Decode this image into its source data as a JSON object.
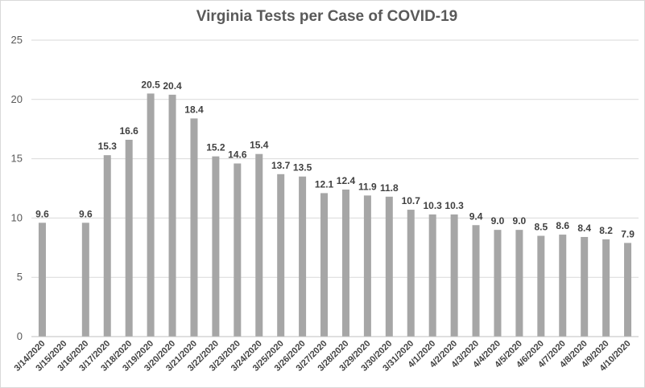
{
  "chart_data": {
    "type": "bar",
    "title": "Virginia Tests per Case of COVID-19",
    "xlabel": "",
    "ylabel": "",
    "ylim": [
      0,
      25
    ],
    "yticks": [
      0,
      5,
      10,
      15,
      20,
      25
    ],
    "grid": true,
    "legend": "none",
    "bar_color": "#a6a6a6",
    "categories": [
      "3/14/2020",
      "3/15/2020",
      "3/16/2020",
      "3/17/2020",
      "3/18/2020",
      "3/19/2020",
      "3/20/2020",
      "3/21/2020",
      "3/22/2020",
      "3/23/2020",
      "3/24/2020",
      "3/25/2020",
      "3/26/2020",
      "3/27/2020",
      "3/28/2020",
      "3/29/2020",
      "3/30/2020",
      "3/31/2020",
      "4/1/2020",
      "4/2/2020",
      "4/3/2020",
      "4/4/2020",
      "4/5/2020",
      "4/6/2020",
      "4/7/2020",
      "4/8/2020",
      "4/9/2020",
      "4/10/2020"
    ],
    "values": [
      9.6,
      null,
      9.6,
      15.3,
      16.6,
      20.5,
      20.4,
      18.4,
      15.2,
      14.6,
      15.4,
      13.7,
      13.5,
      12.1,
      12.4,
      11.9,
      11.8,
      10.7,
      10.3,
      10.3,
      9.4,
      9.0,
      9.0,
      8.5,
      8.6,
      8.4,
      8.2,
      7.9
    ],
    "data_labels": [
      "9.6",
      "",
      "9.6",
      "15.3",
      "16.6",
      "20.5",
      "20.4",
      "18.4",
      "15.2",
      "14.6",
      "15.4",
      "13.7",
      "13.5",
      "12.1",
      "12.4",
      "11.9",
      "11.8",
      "10.7",
      "10.3",
      "10.3",
      "9.4",
      "9.0",
      "9.0",
      "8.5",
      "8.6",
      "8.4",
      "8.2",
      "7.9"
    ]
  }
}
